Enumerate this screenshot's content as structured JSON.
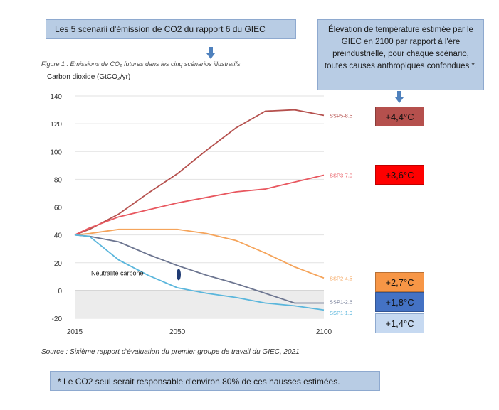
{
  "header": {
    "title": "Les 5 scenarii d'émission de CO2 du rapport 6 du GIEC",
    "note": "Élevation de température estimée par le GIEC en 2100 par rapport à l'ère préindustrielle, pour chaque scénario, toutes causes anthropiques confondues *."
  },
  "figure_caption": "Figure 1 : Emissions de CO₂ futures dans les cinq scénarios illustratifs",
  "source": "Source : Sixième rapport d'évaluation du premier groupe de travail du GIEC, 2021",
  "footnote": "Le CO2 seul serait responsable d'environ 80% de ces hausses estimées.",
  "footnote_mark": "*",
  "annotation": "Neutralité carbone",
  "temperatures": [
    {
      "scenario": "SSP5-8.5",
      "label": "+4,4°C",
      "color": "#b5504d"
    },
    {
      "scenario": "SSP3-7.0",
      "label": "+3,6°C",
      "color": "#ff0000"
    },
    {
      "scenario": "SSP2-4.5",
      "label": "+2,7°C",
      "color": "#f79646"
    },
    {
      "scenario": "SSP1-2.6",
      "label": "+1,8°C",
      "color": "#4472c4"
    },
    {
      "scenario": "SSP1-1.9",
      "label": "+1,4°C",
      "color": "#c6d9f1"
    }
  ],
  "chart_data": {
    "type": "line",
    "ylabel": "Carbon dioxide (GtCO₂/yr)",
    "xlabel": "",
    "x_ticks": [
      2015,
      2050,
      2100
    ],
    "y_ticks": [
      -20,
      0,
      20,
      40,
      60,
      80,
      100,
      120,
      140
    ],
    "xlim": [
      2015,
      2100
    ],
    "ylim": [
      -20,
      140
    ],
    "shaded_region_y": [
      -20,
      0
    ],
    "series": [
      {
        "name": "SSP5-8.5",
        "color": "#b5504d",
        "x": [
          2015,
          2020,
          2030,
          2040,
          2050,
          2060,
          2070,
          2080,
          2090,
          2100
        ],
        "y": [
          40,
          44,
          55,
          70,
          84,
          101,
          117,
          129,
          130,
          126
        ]
      },
      {
        "name": "SSP3-7.0",
        "color": "#e8575f",
        "x": [
          2015,
          2020,
          2030,
          2040,
          2050,
          2060,
          2070,
          2080,
          2090,
          2100
        ],
        "y": [
          40,
          45,
          53,
          58,
          63,
          67,
          71,
          73,
          78,
          83
        ]
      },
      {
        "name": "SSP2-4.5",
        "color": "#f5a45b",
        "x": [
          2015,
          2020,
          2030,
          2040,
          2050,
          2060,
          2070,
          2080,
          2090,
          2100
        ],
        "y": [
          40,
          41,
          44,
          44,
          44,
          41,
          36,
          27,
          17,
          9
        ]
      },
      {
        "name": "SSP1-2.6",
        "color": "#6c7590",
        "x": [
          2015,
          2020,
          2030,
          2040,
          2050,
          2060,
          2070,
          2080,
          2090,
          2100
        ],
        "y": [
          40,
          39,
          35,
          26,
          18,
          11,
          5,
          -2,
          -9,
          -9
        ]
      },
      {
        "name": "SSP1-1.9",
        "color": "#5ab6dc",
        "x": [
          2015,
          2020,
          2030,
          2040,
          2050,
          2060,
          2070,
          2080,
          2090,
          2100
        ],
        "y": [
          40,
          39,
          22,
          11,
          2,
          -2,
          -5,
          -9,
          -11,
          -14
        ]
      }
    ]
  }
}
